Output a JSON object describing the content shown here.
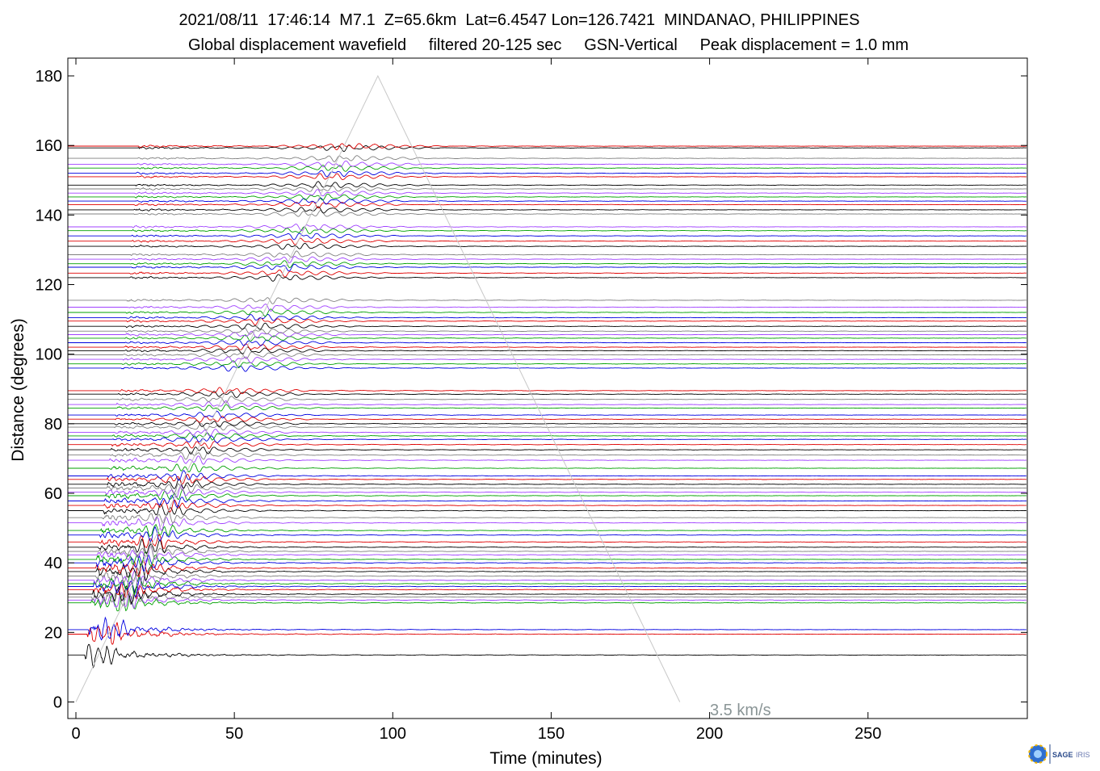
{
  "header": {
    "line1": "2021/08/11  17:46:14  M7.1  Z=65.6km  Lat=6.4547 Lon=126.7421  MINDANAO, PHILIPPINES",
    "line2": "Global displacement wavefield     filtered 20-125 sec     GSN-Vertical     Peak displacement = 1.0 mm"
  },
  "chart_data": {
    "type": "line",
    "xlabel": "Time (minutes)",
    "ylabel": "Distance (degrees)",
    "xlim": [
      -3,
      300
    ],
    "ylim": [
      -5,
      185
    ],
    "xticks": [
      0,
      50,
      100,
      150,
      200,
      250
    ],
    "yticks": [
      0,
      20,
      40,
      60,
      80,
      100,
      120,
      140,
      160,
      180
    ],
    "grid": false,
    "surface_wave_reference": {
      "label": "3.5 km/s",
      "points": [
        [
          0,
          0
        ],
        [
          95.3,
          180
        ],
        [
          190.6,
          0
        ]
      ]
    },
    "trace_colors": [
      "#000000",
      "#e00000",
      "#0000e0",
      "#00a000",
      "#a040ff",
      "#808080"
    ],
    "trace_distances": [
      13.5,
      19.5,
      20.8,
      28.5,
      29.3,
      30.2,
      31.0,
      32.3,
      33.2,
      34.0,
      35.0,
      36.2,
      37.5,
      38.5,
      40.0,
      41.0,
      42.3,
      43.3,
      44.5,
      46.0,
      48.0,
      49.3,
      51.5,
      53.0,
      55.0,
      56.5,
      57.8,
      59.3,
      60.3,
      61.5,
      62.6,
      64.0,
      65.0,
      67.2,
      69.5,
      71.0,
      72.5,
      74.0,
      75.5,
      76.5,
      77.5,
      79.0,
      80.0,
      81.3,
      82.5,
      84.5,
      85.5,
      87.0,
      88.5,
      89.5,
      96.0,
      97.2,
      98.5,
      99.8,
      101.0,
      102.0,
      103.3,
      104.6,
      105.6,
      106.6,
      108.0,
      109.5,
      110.5,
      112.0,
      113.5,
      115.5,
      122.0,
      123.3,
      125.0,
      126.0,
      127.3,
      128.6,
      131.0,
      132.5,
      134.0,
      135.5,
      136.6,
      140.3,
      141.5,
      143.0,
      144.0,
      145.2,
      146.3,
      147.5,
      148.6,
      151.0,
      152.0,
      153.5,
      154.6,
      156.3,
      159.3,
      159.8
    ]
  },
  "logo": {
    "name": "SAGE",
    "subname": "IRIS"
  }
}
